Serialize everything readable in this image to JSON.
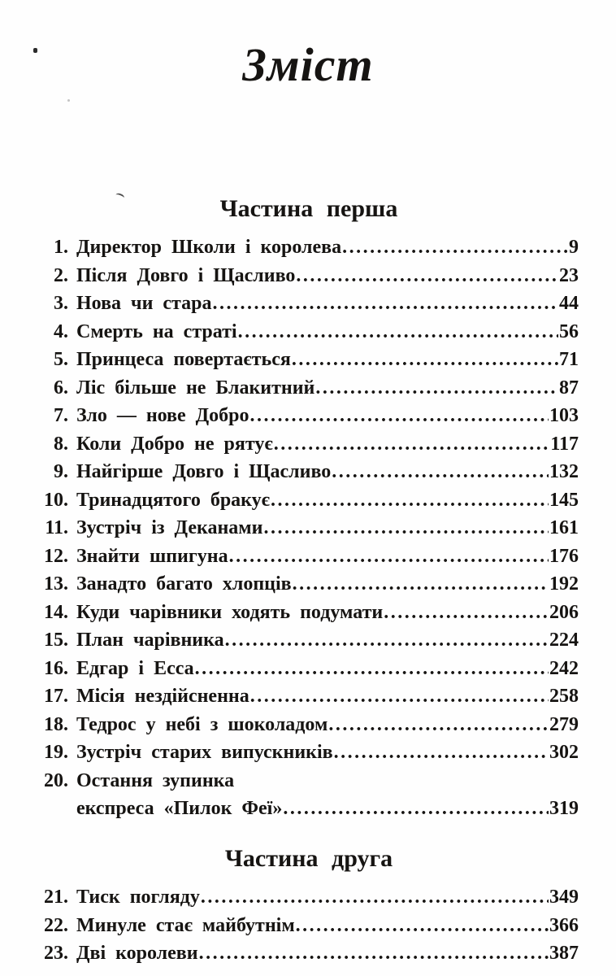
{
  "page_title": "Зміст",
  "toc": {
    "parts": [
      {
        "heading": "Частина перша",
        "items": [
          {
            "num": "1.",
            "title": "Директор Школи і королева",
            "page": "9"
          },
          {
            "num": "2.",
            "title": "Після Довго і Щасливо",
            "page": "23"
          },
          {
            "num": "3.",
            "title": "Нова чи стара",
            "page": "44"
          },
          {
            "num": "4.",
            "title": "Смерть на страті",
            "page": "56"
          },
          {
            "num": "5.",
            "title": "Принцеса повертається",
            "page": "71"
          },
          {
            "num": "6.",
            "title": "Ліс більше не Блакитний",
            "page": "87"
          },
          {
            "num": "7.",
            "title": "Зло — нове Добро",
            "page": "103"
          },
          {
            "num": "8.",
            "title": "Коли Добро не рятує",
            "page": "117"
          },
          {
            "num": "9.",
            "title": "Найгірше Довго і Щасливо",
            "page": "132"
          },
          {
            "num": "10.",
            "title": "Тринадцятого бракує",
            "page": "145"
          },
          {
            "num": "11.",
            "title": "Зустріч із Деканами",
            "page": "161"
          },
          {
            "num": "12.",
            "title": "Знайти шпигуна",
            "page": "176"
          },
          {
            "num": "13.",
            "title": "Занадто багато хлопців",
            "page": "192"
          },
          {
            "num": "14.",
            "title": "Куди чарівники ходять подумати",
            "page": "206"
          },
          {
            "num": "15.",
            "title": "План чарівника",
            "page": "224"
          },
          {
            "num": "16.",
            "title": "Едгар і Есса",
            "page": "242"
          },
          {
            "num": "17.",
            "title": "Місія нездійсненна",
            "page": "258"
          },
          {
            "num": "18.",
            "title": "Тедрос у небі з шоколадом",
            "page": "279"
          },
          {
            "num": "19.",
            "title": "Зустріч старих випускників",
            "page": "302"
          },
          {
            "num": "20.",
            "title": "Остання зупинка",
            "continuation": "експреса «Пилок Феї»",
            "page": "319"
          }
        ]
      },
      {
        "heading": "Частина друга",
        "items": [
          {
            "num": "21.",
            "title": "Тиск погляду",
            "page": "349"
          },
          {
            "num": "22.",
            "title": "Минуле стає майбутнім",
            "page": "366"
          },
          {
            "num": "23.",
            "title": "Дві королеви",
            "page": "387"
          }
        ]
      }
    ]
  }
}
